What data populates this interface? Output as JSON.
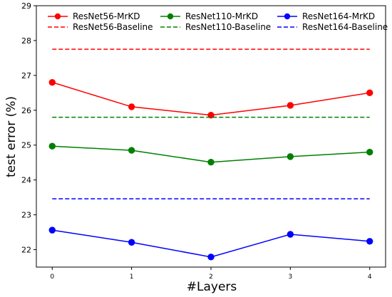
{
  "chart_data": {
    "type": "line",
    "xlabel": "#Layers",
    "ylabel": "test error (%)",
    "x": [
      0,
      1,
      2,
      3,
      4
    ],
    "x_ticks": [
      "0",
      "1",
      "2",
      "3",
      "4"
    ],
    "y_ticks": [
      "22",
      "23",
      "24",
      "25",
      "26",
      "27",
      "28",
      "29"
    ],
    "xlim": [
      -0.2,
      4.2
    ],
    "ylim": [
      21.5,
      29
    ],
    "grid": false,
    "legend_position": "top",
    "series": [
      {
        "name": "ResNet56-MrKD",
        "values": [
          26.8,
          26.1,
          25.86,
          26.14,
          26.5
        ],
        "color": "#ff0000",
        "style": "solid",
        "marker": "circle"
      },
      {
        "name": "ResNet110-MrKD",
        "values": [
          24.97,
          24.85,
          24.51,
          24.67,
          24.8
        ],
        "color": "#008000",
        "style": "solid",
        "marker": "circle"
      },
      {
        "name": "ResNet164-MrKD",
        "values": [
          22.56,
          22.21,
          21.79,
          22.44,
          22.24
        ],
        "color": "#0000ff",
        "style": "solid",
        "marker": "circle"
      },
      {
        "name": "ResNet56-Baseline",
        "values": [
          27.75,
          27.75,
          27.75,
          27.75,
          27.75
        ],
        "color": "#ff0000",
        "style": "dashed",
        "marker": "none"
      },
      {
        "name": "ResNet110-Baseline",
        "values": [
          25.8,
          25.8,
          25.8,
          25.8,
          25.8
        ],
        "color": "#008000",
        "style": "dashed",
        "marker": "none"
      },
      {
        "name": "ResNet164-Baseline",
        "values": [
          23.46,
          23.46,
          23.46,
          23.46,
          23.46
        ],
        "color": "#0000ff",
        "style": "dashed",
        "marker": "none"
      }
    ],
    "legend_order": [
      0,
      3,
      1,
      4,
      2,
      5
    ]
  }
}
